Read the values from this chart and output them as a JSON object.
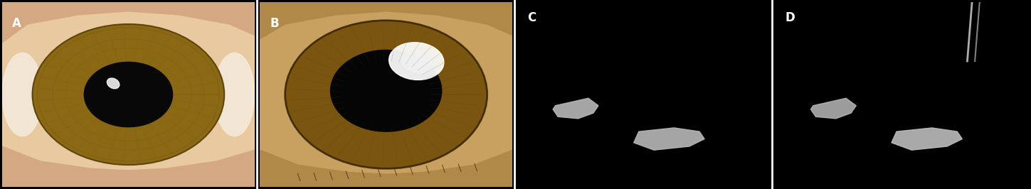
{
  "panels": [
    "A",
    "B",
    "C",
    "D"
  ],
  "figsize": [
    14.49,
    2.66
  ],
  "dpi": 100,
  "panel_labels": [
    "A",
    "B",
    "C",
    "D"
  ],
  "label_color": "white",
  "label_fontsize": 12,
  "label_fontweight": "bold",
  "background_color": "black",
  "border_color": "white",
  "border_linewidth": 1.5,
  "panel_colors": {
    "A": "#c8a878",
    "B": "#b89060",
    "C": "#101010",
    "D": "#080808"
  }
}
